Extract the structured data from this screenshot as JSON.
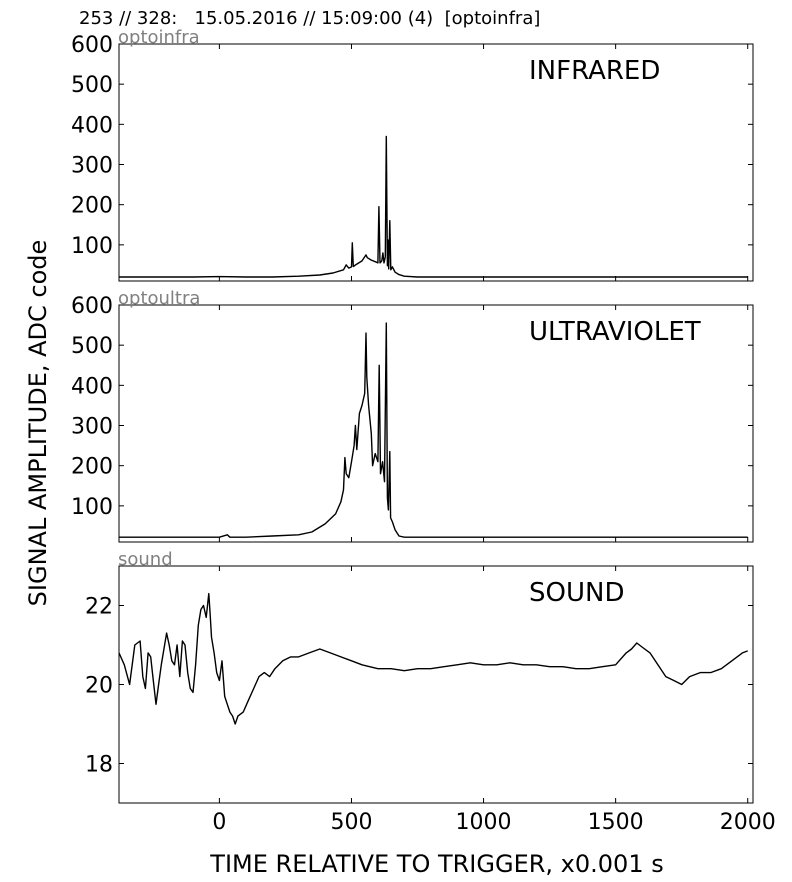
{
  "header": {
    "text": "253 // 328:   15.05.2016 // 15:09:00 (4)  [optoinfra]"
  },
  "figure": {
    "ylabel": "SIGNAL AMPLITUDE,  ADC code",
    "xlabel": "TIME RELATIVE TO TRIGGER,   x0.001 s"
  },
  "chart_data": [
    {
      "type": "line",
      "channel": "optoinfra",
      "title": "INFRARED",
      "xlim": [
        -380,
        2020
      ],
      "ylim": [
        10,
        600
      ],
      "yticks": [
        100,
        200,
        300,
        400,
        500,
        600
      ],
      "xticks": [
        0,
        500,
        1000,
        1500,
        2000
      ],
      "grid": false,
      "baseline": 20,
      "points": [
        [
          -380,
          20
        ],
        [
          -300,
          20
        ],
        [
          -200,
          20
        ],
        [
          -100,
          20
        ],
        [
          0,
          21
        ],
        [
          100,
          20
        ],
        [
          200,
          20
        ],
        [
          300,
          22
        ],
        [
          380,
          25
        ],
        [
          430,
          30
        ],
        [
          470,
          38
        ],
        [
          480,
          50
        ],
        [
          490,
          42
        ],
        [
          500,
          45
        ],
        [
          503,
          105
        ],
        [
          507,
          46
        ],
        [
          520,
          52
        ],
        [
          540,
          60
        ],
        [
          555,
          75
        ],
        [
          560,
          68
        ],
        [
          575,
          62
        ],
        [
          590,
          58
        ],
        [
          600,
          55
        ],
        [
          604,
          195
        ],
        [
          608,
          55
        ],
        [
          615,
          60
        ],
        [
          619,
          80
        ],
        [
          623,
          55
        ],
        [
          628,
          70
        ],
        [
          632,
          370
        ],
        [
          636,
          48
        ],
        [
          638,
          112
        ],
        [
          641,
          40
        ],
        [
          645,
          160
        ],
        [
          649,
          38
        ],
        [
          655,
          45
        ],
        [
          665,
          32
        ],
        [
          680,
          26
        ],
        [
          700,
          22
        ],
        [
          750,
          20
        ],
        [
          1000,
          20
        ],
        [
          1500,
          20
        ],
        [
          2000,
          20
        ]
      ]
    },
    {
      "type": "line",
      "channel": "optoultra",
      "title": "ULTRAVIOLET",
      "xlim": [
        -380,
        2020
      ],
      "ylim": [
        10,
        600
      ],
      "yticks": [
        100,
        200,
        300,
        400,
        500,
        600
      ],
      "xticks": [
        0,
        500,
        1000,
        1500,
        2000
      ],
      "grid": false,
      "baseline": 20,
      "points": [
        [
          -380,
          22
        ],
        [
          -300,
          22
        ],
        [
          -200,
          22
        ],
        [
          -100,
          22
        ],
        [
          0,
          22
        ],
        [
          30,
          28
        ],
        [
          40,
          22
        ],
        [
          100,
          22
        ],
        [
          200,
          25
        ],
        [
          300,
          28
        ],
        [
          350,
          35
        ],
        [
          400,
          55
        ],
        [
          440,
          80
        ],
        [
          460,
          110
        ],
        [
          470,
          140
        ],
        [
          475,
          220
        ],
        [
          480,
          180
        ],
        [
          490,
          170
        ],
        [
          500,
          210
        ],
        [
          510,
          250
        ],
        [
          515,
          300
        ],
        [
          520,
          240
        ],
        [
          530,
          330
        ],
        [
          540,
          350
        ],
        [
          550,
          380
        ],
        [
          555,
          530
        ],
        [
          558,
          420
        ],
        [
          565,
          350
        ],
        [
          575,
          280
        ],
        [
          580,
          200
        ],
        [
          590,
          230
        ],
        [
          600,
          210
        ],
        [
          605,
          450
        ],
        [
          610,
          180
        ],
        [
          618,
          210
        ],
        [
          625,
          160
        ],
        [
          632,
          555
        ],
        [
          636,
          120
        ],
        [
          640,
          90
        ],
        [
          645,
          235
        ],
        [
          648,
          70
        ],
        [
          655,
          60
        ],
        [
          665,
          40
        ],
        [
          680,
          25
        ],
        [
          700,
          22
        ],
        [
          800,
          22
        ],
        [
          1000,
          22
        ],
        [
          1500,
          22
        ],
        [
          2000,
          22
        ]
      ]
    },
    {
      "type": "line",
      "channel": "sound",
      "title": "SOUND",
      "xlim": [
        -380,
        2020
      ],
      "ylim": [
        17,
        23
      ],
      "yticks": [
        18,
        20,
        22
      ],
      "xticks": [
        0,
        500,
        1000,
        1500,
        2000
      ],
      "grid": false,
      "points": [
        [
          -380,
          20.8
        ],
        [
          -360,
          20.5
        ],
        [
          -340,
          20.0
        ],
        [
          -320,
          21.0
        ],
        [
          -300,
          21.1
        ],
        [
          -290,
          20.2
        ],
        [
          -280,
          19.9
        ],
        [
          -270,
          20.8
        ],
        [
          -260,
          20.7
        ],
        [
          -250,
          20.1
        ],
        [
          -240,
          19.5
        ],
        [
          -230,
          20.0
        ],
        [
          -220,
          20.5
        ],
        [
          -200,
          21.3
        ],
        [
          -190,
          21.0
        ],
        [
          -180,
          20.6
        ],
        [
          -170,
          20.5
        ],
        [
          -160,
          21.0
        ],
        [
          -150,
          20.2
        ],
        [
          -140,
          21.1
        ],
        [
          -130,
          21.0
        ],
        [
          -120,
          20.3
        ],
        [
          -110,
          19.9
        ],
        [
          -100,
          19.8
        ],
        [
          -90,
          20.5
        ],
        [
          -80,
          21.5
        ],
        [
          -70,
          21.9
        ],
        [
          -60,
          22.0
        ],
        [
          -50,
          21.7
        ],
        [
          -40,
          22.3
        ],
        [
          -35,
          21.8
        ],
        [
          -30,
          21.2
        ],
        [
          -20,
          20.8
        ],
        [
          -10,
          20.3
        ],
        [
          0,
          20.1
        ],
        [
          10,
          20.6
        ],
        [
          20,
          19.7
        ],
        [
          30,
          19.5
        ],
        [
          40,
          19.3
        ],
        [
          50,
          19.2
        ],
        [
          60,
          19.0
        ],
        [
          70,
          19.2
        ],
        [
          90,
          19.3
        ],
        [
          110,
          19.6
        ],
        [
          130,
          19.9
        ],
        [
          150,
          20.2
        ],
        [
          170,
          20.3
        ],
        [
          190,
          20.2
        ],
        [
          210,
          20.4
        ],
        [
          240,
          20.6
        ],
        [
          270,
          20.7
        ],
        [
          300,
          20.7
        ],
        [
          340,
          20.8
        ],
        [
          380,
          20.9
        ],
        [
          420,
          20.8
        ],
        [
          460,
          20.7
        ],
        [
          500,
          20.6
        ],
        [
          540,
          20.5
        ],
        [
          600,
          20.4
        ],
        [
          650,
          20.4
        ],
        [
          700,
          20.35
        ],
        [
          750,
          20.4
        ],
        [
          800,
          20.4
        ],
        [
          850,
          20.45
        ],
        [
          900,
          20.5
        ],
        [
          950,
          20.55
        ],
        [
          1000,
          20.5
        ],
        [
          1050,
          20.5
        ],
        [
          1100,
          20.55
        ],
        [
          1150,
          20.5
        ],
        [
          1200,
          20.5
        ],
        [
          1250,
          20.45
        ],
        [
          1300,
          20.45
        ],
        [
          1350,
          20.4
        ],
        [
          1400,
          20.4
        ],
        [
          1450,
          20.45
        ],
        [
          1500,
          20.5
        ],
        [
          1540,
          20.8
        ],
        [
          1560,
          20.9
        ],
        [
          1580,
          21.05
        ],
        [
          1600,
          20.95
        ],
        [
          1630,
          20.8
        ],
        [
          1660,
          20.5
        ],
        [
          1690,
          20.2
        ],
        [
          1720,
          20.1
        ],
        [
          1750,
          20.0
        ],
        [
          1780,
          20.2
        ],
        [
          1820,
          20.3
        ],
        [
          1860,
          20.3
        ],
        [
          1900,
          20.4
        ],
        [
          1940,
          20.6
        ],
        [
          1980,
          20.8
        ],
        [
          2000,
          20.85
        ]
      ]
    }
  ]
}
